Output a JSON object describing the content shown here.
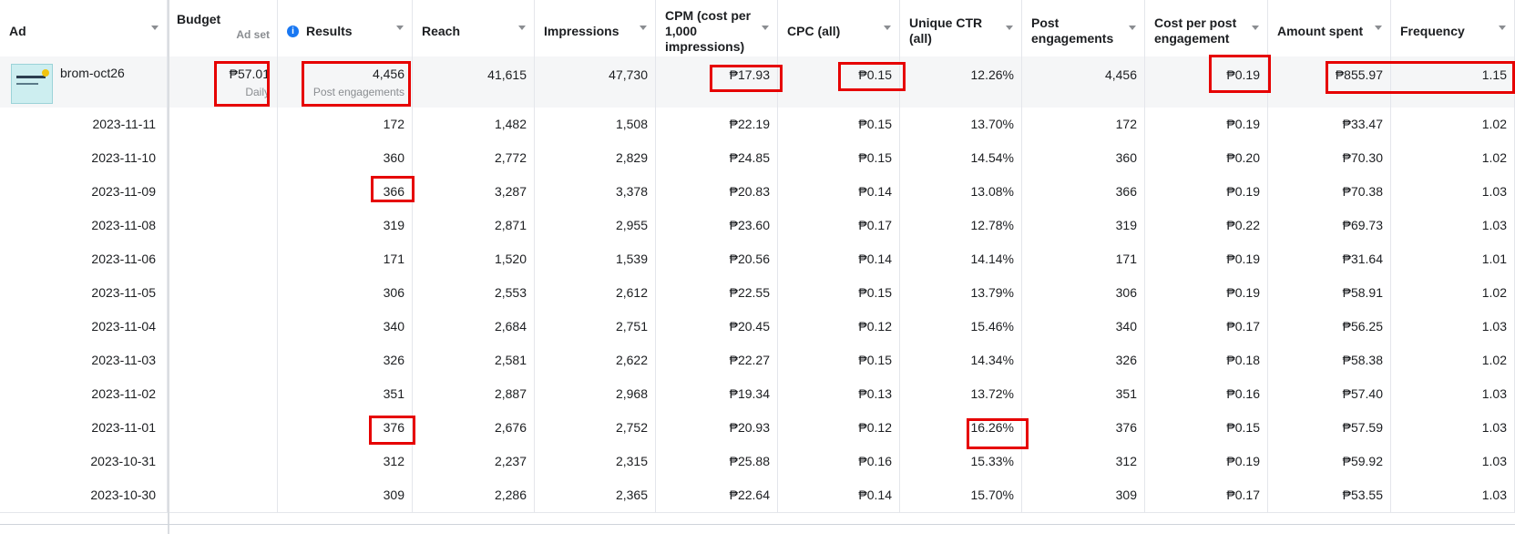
{
  "columns": [
    {
      "key": "ad",
      "label": "Ad"
    },
    {
      "key": "budget",
      "label": "Budget"
    },
    {
      "key": "results",
      "label": "Results"
    },
    {
      "key": "reach",
      "label": "Reach"
    },
    {
      "key": "impressions",
      "label": "Impressions"
    },
    {
      "key": "cpm",
      "label": "CPM (cost per 1,000 impressions)"
    },
    {
      "key": "cpc",
      "label": "CPC (all)"
    },
    {
      "key": "ctr",
      "label": "Unique CTR (all)"
    },
    {
      "key": "post_eng",
      "label": "Post engagements"
    },
    {
      "key": "cost_per_eng",
      "label": "Cost per post engagement"
    },
    {
      "key": "amount",
      "label": "Amount spent"
    },
    {
      "key": "freq",
      "label": "Frequency"
    }
  ],
  "summary": {
    "ad_name": "brom-oct26",
    "budget": "₱57.01",
    "budget_scope": "Ad set",
    "budget_type": "Daily",
    "results": "4,456",
    "results_type": "Post engagements",
    "reach": "41,615",
    "impressions": "47,730",
    "cpm": "₱17.93",
    "cpc": "₱0.15",
    "ctr": "12.26%",
    "post_eng": "4,456",
    "cost_per_eng": "₱0.19",
    "amount": "₱855.97",
    "freq": "1.15"
  },
  "rows": [
    {
      "date": "2023-11-11",
      "results": "172",
      "reach": "1,482",
      "impressions": "1,508",
      "cpm": "₱22.19",
      "cpc": "₱0.15",
      "ctr": "13.70%",
      "post_eng": "172",
      "cost_per_eng": "₱0.19",
      "amount": "₱33.47",
      "freq": "1.02"
    },
    {
      "date": "2023-11-10",
      "results": "360",
      "reach": "2,772",
      "impressions": "2,829",
      "cpm": "₱24.85",
      "cpc": "₱0.15",
      "ctr": "14.54%",
      "post_eng": "360",
      "cost_per_eng": "₱0.20",
      "amount": "₱70.30",
      "freq": "1.02"
    },
    {
      "date": "2023-11-09",
      "results": "366",
      "reach": "3,287",
      "impressions": "3,378",
      "cpm": "₱20.83",
      "cpc": "₱0.14",
      "ctr": "13.08%",
      "post_eng": "366",
      "cost_per_eng": "₱0.19",
      "amount": "₱70.38",
      "freq": "1.03"
    },
    {
      "date": "2023-11-08",
      "results": "319",
      "reach": "2,871",
      "impressions": "2,955",
      "cpm": "₱23.60",
      "cpc": "₱0.17",
      "ctr": "12.78%",
      "post_eng": "319",
      "cost_per_eng": "₱0.22",
      "amount": "₱69.73",
      "freq": "1.03"
    },
    {
      "date": "2023-11-06",
      "results": "171",
      "reach": "1,520",
      "impressions": "1,539",
      "cpm": "₱20.56",
      "cpc": "₱0.14",
      "ctr": "14.14%",
      "post_eng": "171",
      "cost_per_eng": "₱0.19",
      "amount": "₱31.64",
      "freq": "1.01"
    },
    {
      "date": "2023-11-05",
      "results": "306",
      "reach": "2,553",
      "impressions": "2,612",
      "cpm": "₱22.55",
      "cpc": "₱0.15",
      "ctr": "13.79%",
      "post_eng": "306",
      "cost_per_eng": "₱0.19",
      "amount": "₱58.91",
      "freq": "1.02"
    },
    {
      "date": "2023-11-04",
      "results": "340",
      "reach": "2,684",
      "impressions": "2,751",
      "cpm": "₱20.45",
      "cpc": "₱0.12",
      "ctr": "15.46%",
      "post_eng": "340",
      "cost_per_eng": "₱0.17",
      "amount": "₱56.25",
      "freq": "1.03"
    },
    {
      "date": "2023-11-03",
      "results": "326",
      "reach": "2,581",
      "impressions": "2,622",
      "cpm": "₱22.27",
      "cpc": "₱0.15",
      "ctr": "14.34%",
      "post_eng": "326",
      "cost_per_eng": "₱0.18",
      "amount": "₱58.38",
      "freq": "1.02"
    },
    {
      "date": "2023-11-02",
      "results": "351",
      "reach": "2,887",
      "impressions": "2,968",
      "cpm": "₱19.34",
      "cpc": "₱0.13",
      "ctr": "13.72%",
      "post_eng": "351",
      "cost_per_eng": "₱0.16",
      "amount": "₱57.40",
      "freq": "1.03"
    },
    {
      "date": "2023-11-01",
      "results": "376",
      "reach": "2,676",
      "impressions": "2,752",
      "cpm": "₱20.93",
      "cpc": "₱0.12",
      "ctr": "16.26%",
      "post_eng": "376",
      "cost_per_eng": "₱0.15",
      "amount": "₱57.59",
      "freq": "1.03"
    },
    {
      "date": "2023-10-31",
      "results": "312",
      "reach": "2,237",
      "impressions": "2,315",
      "cpm": "₱25.88",
      "cpc": "₱0.16",
      "ctr": "15.33%",
      "post_eng": "312",
      "cost_per_eng": "₱0.19",
      "amount": "₱59.92",
      "freq": "1.03"
    },
    {
      "date": "2023-10-30",
      "results": "309",
      "reach": "2,286",
      "impressions": "2,365",
      "cpm": "₱22.64",
      "cpc": "₱0.14",
      "ctr": "15.70%",
      "post_eng": "309",
      "cost_per_eng": "₱0.17",
      "amount": "₱53.55",
      "freq": "1.03"
    }
  ],
  "colors": {
    "highlight": "#e60000",
    "info": "#1877f2",
    "summary_bg": "#f5f6f7",
    "grid": "#e4e6eb"
  },
  "icons": {
    "info": "info-icon",
    "sort": "chevron-down-icon"
  }
}
